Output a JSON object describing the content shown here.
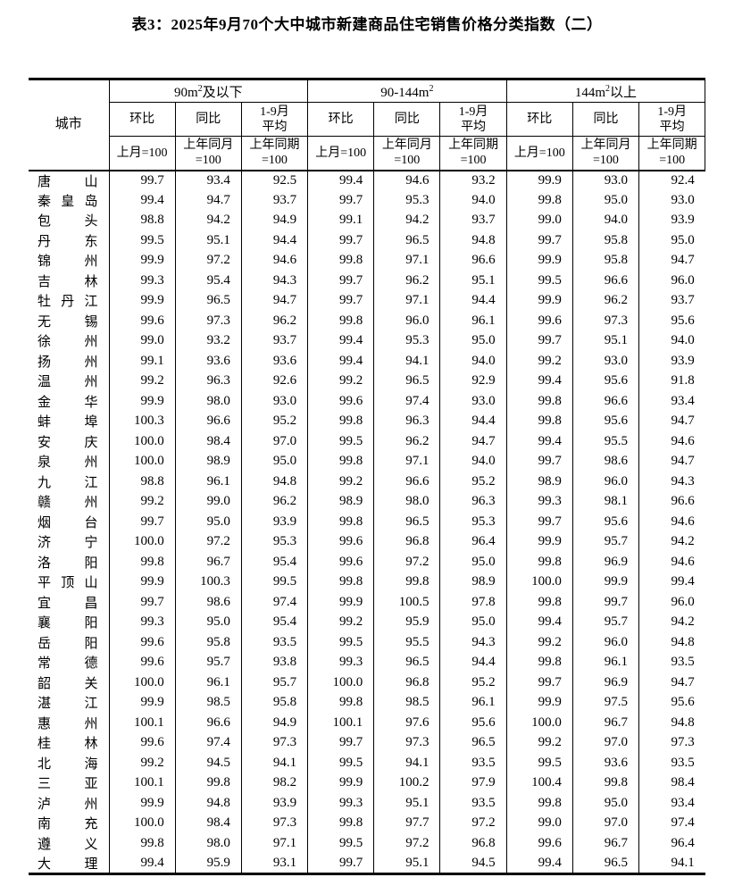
{
  "page_title": "表3：2025年9月70个大中城市新建商品住宅销售价格分类指数（二）",
  "colors": {
    "text": "#000000",
    "border": "#000000",
    "background": "#ffffff"
  },
  "table": {
    "corner_header": "城市",
    "groups": [
      {
        "label_pre": "90m",
        "label_sup": "2",
        "label_post": "及以下"
      },
      {
        "label_pre": "90-144m",
        "label_sup": "2",
        "label_post": ""
      },
      {
        "label_pre": "144m",
        "label_sup": "2",
        "label_post": "以上"
      }
    ],
    "metric_headers": [
      {
        "lines": [
          "环比"
        ]
      },
      {
        "lines": [
          "同比"
        ]
      },
      {
        "lines": [
          "1-9月",
          "平均"
        ]
      }
    ],
    "base_headers": [
      {
        "lines": [
          "上月=100"
        ]
      },
      {
        "lines": [
          "上年同月",
          "=100"
        ]
      },
      {
        "lines": [
          "上年同期",
          "=100"
        ]
      }
    ],
    "rows": [
      {
        "city": "唐山",
        "values": [
          "99.7",
          "93.4",
          "92.5",
          "99.4",
          "94.6",
          "93.2",
          "99.9",
          "93.0",
          "92.4"
        ]
      },
      {
        "city": "秦皇岛",
        "values": [
          "99.4",
          "94.7",
          "93.7",
          "99.7",
          "95.3",
          "94.0",
          "99.8",
          "95.0",
          "93.0"
        ]
      },
      {
        "city": "包头",
        "values": [
          "98.8",
          "94.2",
          "94.9",
          "99.1",
          "94.2",
          "93.7",
          "99.0",
          "94.0",
          "93.9"
        ]
      },
      {
        "city": "丹东",
        "values": [
          "99.5",
          "95.1",
          "94.4",
          "99.7",
          "96.5",
          "94.8",
          "99.7",
          "95.8",
          "95.0"
        ]
      },
      {
        "city": "锦州",
        "values": [
          "99.9",
          "97.2",
          "94.6",
          "99.8",
          "97.1",
          "96.6",
          "99.9",
          "95.8",
          "94.7"
        ]
      },
      {
        "city": "吉林",
        "values": [
          "99.3",
          "95.4",
          "94.3",
          "99.7",
          "96.2",
          "95.1",
          "99.5",
          "96.6",
          "96.0"
        ]
      },
      {
        "city": "牡丹江",
        "values": [
          "99.9",
          "96.5",
          "94.7",
          "99.7",
          "97.1",
          "94.4",
          "99.9",
          "96.2",
          "93.7"
        ]
      },
      {
        "city": "无锡",
        "values": [
          "99.6",
          "97.3",
          "96.2",
          "99.8",
          "96.0",
          "96.1",
          "99.6",
          "97.3",
          "95.6"
        ]
      },
      {
        "city": "徐州",
        "values": [
          "99.0",
          "93.2",
          "93.7",
          "99.4",
          "95.3",
          "95.0",
          "99.7",
          "95.1",
          "94.0"
        ]
      },
      {
        "city": "扬州",
        "values": [
          "99.1",
          "93.6",
          "93.6",
          "99.4",
          "94.1",
          "94.0",
          "99.2",
          "93.0",
          "93.9"
        ]
      },
      {
        "city": "温州",
        "values": [
          "99.2",
          "96.3",
          "92.6",
          "99.2",
          "96.5",
          "92.9",
          "99.4",
          "95.6",
          "91.8"
        ]
      },
      {
        "city": "金华",
        "values": [
          "99.9",
          "98.0",
          "93.0",
          "99.6",
          "97.4",
          "93.0",
          "99.8",
          "96.6",
          "93.4"
        ]
      },
      {
        "city": "蚌埠",
        "values": [
          "100.3",
          "96.6",
          "95.2",
          "99.8",
          "96.3",
          "94.4",
          "99.8",
          "95.6",
          "94.7"
        ]
      },
      {
        "city": "安庆",
        "values": [
          "100.0",
          "98.4",
          "97.0",
          "99.5",
          "96.2",
          "94.7",
          "99.4",
          "95.5",
          "94.6"
        ]
      },
      {
        "city": "泉州",
        "values": [
          "100.0",
          "98.9",
          "95.0",
          "99.8",
          "97.1",
          "94.0",
          "99.7",
          "98.6",
          "94.7"
        ]
      },
      {
        "city": "九江",
        "values": [
          "98.8",
          "96.1",
          "94.8",
          "99.2",
          "96.6",
          "95.2",
          "98.9",
          "96.0",
          "94.3"
        ]
      },
      {
        "city": "赣州",
        "values": [
          "99.2",
          "99.0",
          "96.2",
          "98.9",
          "98.0",
          "96.3",
          "99.3",
          "98.1",
          "96.6"
        ]
      },
      {
        "city": "烟台",
        "values": [
          "99.7",
          "95.0",
          "93.9",
          "99.8",
          "96.5",
          "95.3",
          "99.7",
          "95.6",
          "94.6"
        ]
      },
      {
        "city": "济宁",
        "values": [
          "100.0",
          "97.2",
          "95.3",
          "99.6",
          "96.8",
          "96.4",
          "99.9",
          "95.7",
          "94.2"
        ]
      },
      {
        "city": "洛阳",
        "values": [
          "99.8",
          "96.7",
          "95.4",
          "99.6",
          "97.2",
          "95.0",
          "99.8",
          "96.9",
          "94.6"
        ]
      },
      {
        "city": "平顶山",
        "values": [
          "99.9",
          "100.3",
          "99.5",
          "99.8",
          "99.8",
          "98.9",
          "100.0",
          "99.9",
          "99.4"
        ]
      },
      {
        "city": "宜昌",
        "values": [
          "99.7",
          "98.6",
          "97.4",
          "99.9",
          "100.5",
          "97.8",
          "99.8",
          "99.7",
          "96.0"
        ]
      },
      {
        "city": "襄阳",
        "values": [
          "99.3",
          "95.0",
          "95.4",
          "99.2",
          "95.9",
          "95.0",
          "99.4",
          "95.7",
          "94.2"
        ]
      },
      {
        "city": "岳阳",
        "values": [
          "99.6",
          "95.8",
          "93.5",
          "99.5",
          "95.5",
          "94.3",
          "99.2",
          "96.0",
          "94.8"
        ]
      },
      {
        "city": "常德",
        "values": [
          "99.6",
          "95.7",
          "93.8",
          "99.3",
          "96.5",
          "94.4",
          "99.8",
          "96.1",
          "93.5"
        ]
      },
      {
        "city": "韶关",
        "values": [
          "100.0",
          "96.1",
          "95.7",
          "100.0",
          "96.8",
          "95.2",
          "99.7",
          "96.9",
          "94.7"
        ]
      },
      {
        "city": "湛江",
        "values": [
          "99.9",
          "98.5",
          "95.8",
          "99.8",
          "98.5",
          "96.1",
          "99.9",
          "97.5",
          "95.6"
        ]
      },
      {
        "city": "惠州",
        "values": [
          "100.1",
          "96.6",
          "94.9",
          "100.1",
          "97.6",
          "95.6",
          "100.0",
          "96.7",
          "94.8"
        ]
      },
      {
        "city": "桂林",
        "values": [
          "99.6",
          "97.4",
          "97.3",
          "99.7",
          "97.3",
          "96.5",
          "99.2",
          "97.0",
          "97.3"
        ]
      },
      {
        "city": "北海",
        "values": [
          "99.2",
          "94.5",
          "94.1",
          "99.5",
          "94.1",
          "93.5",
          "99.5",
          "93.6",
          "93.5"
        ]
      },
      {
        "city": "三亚",
        "values": [
          "100.1",
          "99.8",
          "98.2",
          "99.9",
          "100.2",
          "97.9",
          "100.4",
          "99.8",
          "98.4"
        ]
      },
      {
        "city": "泸州",
        "values": [
          "99.9",
          "94.8",
          "93.9",
          "99.3",
          "95.1",
          "93.5",
          "99.8",
          "95.0",
          "93.4"
        ]
      },
      {
        "city": "南充",
        "values": [
          "100.0",
          "98.4",
          "97.3",
          "99.8",
          "97.7",
          "97.2",
          "99.0",
          "97.0",
          "97.4"
        ]
      },
      {
        "city": "遵义",
        "values": [
          "99.8",
          "98.0",
          "97.1",
          "99.5",
          "97.2",
          "96.8",
          "99.6",
          "96.7",
          "96.4"
        ]
      },
      {
        "city": "大理",
        "values": [
          "99.4",
          "95.9",
          "93.1",
          "99.7",
          "95.1",
          "94.5",
          "99.4",
          "96.5",
          "94.1"
        ]
      }
    ]
  }
}
